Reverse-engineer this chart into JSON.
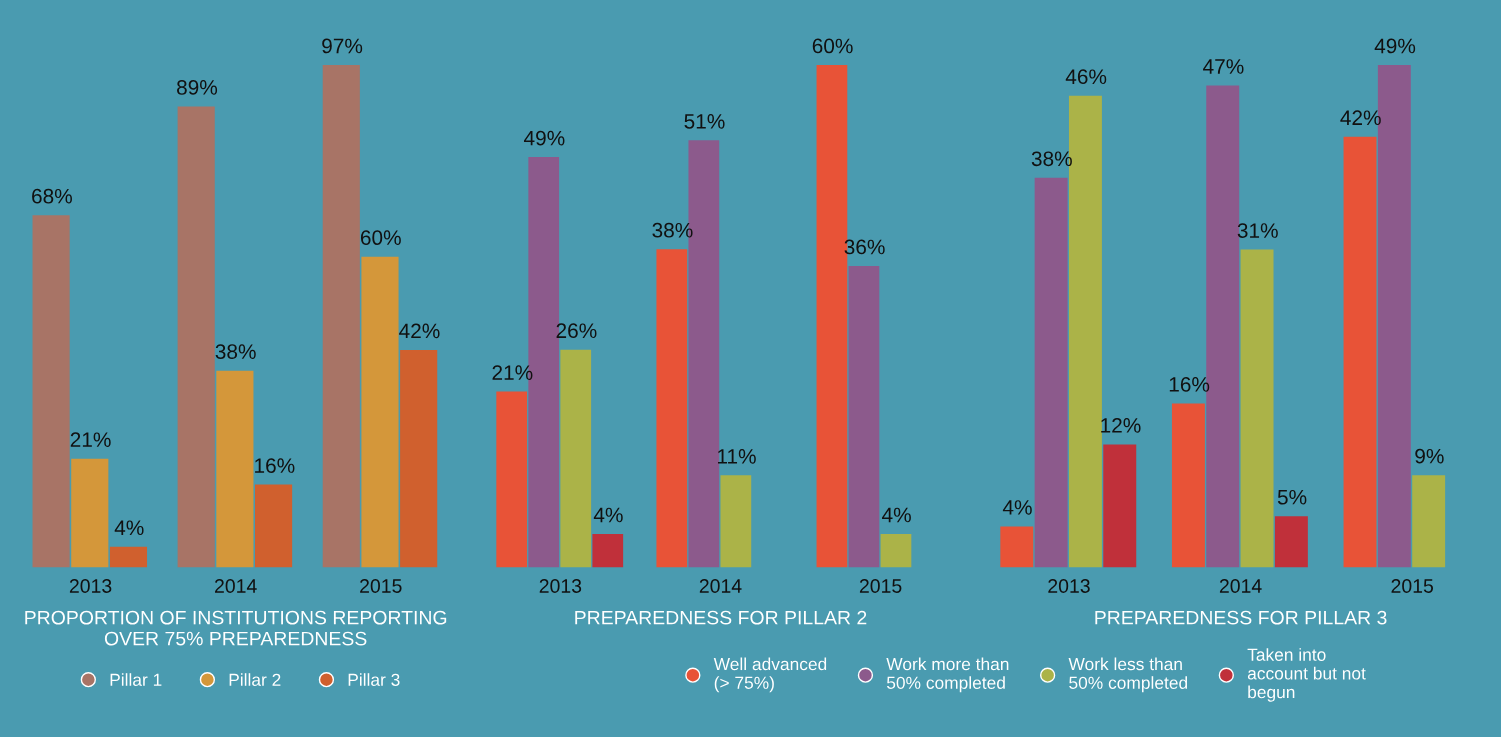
{
  "chart_data": [
    {
      "type": "bar",
      "title": "PROPORTION OF INSTITUTIONS REPORTING\nOVER 75% PREPAREDNESS",
      "categories": [
        "2013",
        "2014",
        "2015"
      ],
      "tick_labels": "x",
      "legend": "bottom",
      "series": [
        {
          "name": "Pillar 1",
          "color": "#a87466",
          "values": [
            68,
            89,
            97
          ],
          "value_labels": [
            "68%",
            "89%",
            "97%"
          ]
        },
        {
          "name": "Pillar 2",
          "color": "#d4973a",
          "values": [
            21,
            38,
            60
          ],
          "value_labels": [
            "21%",
            "38%",
            "60%"
          ]
        },
        {
          "name": "Pillar 3",
          "color": "#d0602e",
          "values": [
            4,
            16,
            42
          ],
          "value_labels": [
            "4%",
            "16%",
            "42%"
          ]
        }
      ]
    },
    {
      "type": "bar",
      "title": "PREPAREDNESS FOR PILLAR 2",
      "categories": [
        "2013",
        "2014",
        "2015"
      ],
      "tick_labels": "x",
      "legend": "bottom",
      "series": [
        {
          "name": "Well advanced\n(> 75%)",
          "color": "#e85337",
          "values": [
            21,
            38,
            60
          ],
          "value_labels": [
            "21%",
            "38%",
            "60%"
          ]
        },
        {
          "name": "Work more than\n50% completed",
          "color": "#8c5a8c",
          "values": [
            49,
            51,
            36
          ],
          "value_labels": [
            "49%",
            "51%",
            "36%"
          ]
        },
        {
          "name": "Work less than\n50% completed",
          "color": "#abb348",
          "values": [
            26,
            11,
            4
          ],
          "value_labels": [
            "26%",
            "11%",
            "4%"
          ]
        },
        {
          "name": "Taken into\naccount but not\nbegun",
          "color": "#c0303a",
          "values": [
            4,
            null,
            null
          ],
          "value_labels": [
            "4%",
            null,
            null
          ]
        }
      ]
    },
    {
      "type": "bar",
      "title": "PREPAREDNESS FOR PILLAR 3",
      "categories": [
        "2013",
        "2014",
        "2015"
      ],
      "tick_labels": "x",
      "series": [
        {
          "color": "#e85337",
          "values": [
            4,
            16,
            42
          ],
          "value_labels": [
            "4%",
            "16%",
            "42%"
          ]
        },
        {
          "color": "#8c5a8c",
          "values": [
            38,
            47,
            49
          ],
          "value_labels": [
            "38%",
            "47%",
            "49%"
          ]
        },
        {
          "color": "#abb348",
          "values": [
            46,
            31,
            9
          ],
          "value_labels": [
            "46%",
            "31%",
            "9%"
          ]
        },
        {
          "color": "#c0303a",
          "values": [
            12,
            5,
            null
          ],
          "value_labels": [
            "12%",
            "5%",
            null
          ]
        }
      ]
    }
  ]
}
